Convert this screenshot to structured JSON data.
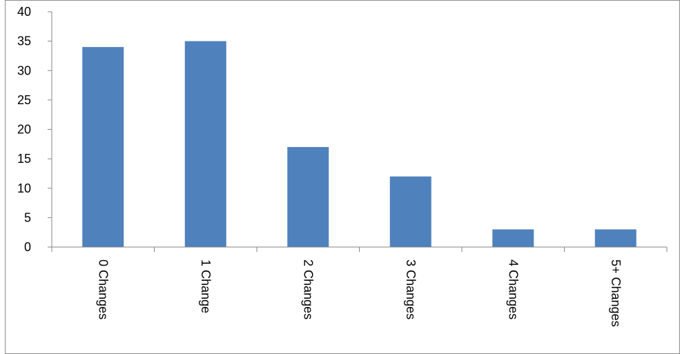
{
  "chart_data": {
    "type": "bar",
    "categories": [
      "0 Changes",
      "1 Change",
      "2 Changes",
      "3 Changes",
      "4 Changes",
      "5+ Changes"
    ],
    "values": [
      34,
      35,
      17,
      12,
      3,
      3
    ],
    "ylim": [
      0,
      40
    ],
    "yticks": [
      0,
      5,
      10,
      15,
      20,
      25,
      30,
      35,
      40
    ],
    "title": "",
    "xlabel": "",
    "ylabel": "",
    "grid": false,
    "legend": "none",
    "bar_color": "#4F81BD",
    "category_label_orientation": "vertical"
  }
}
